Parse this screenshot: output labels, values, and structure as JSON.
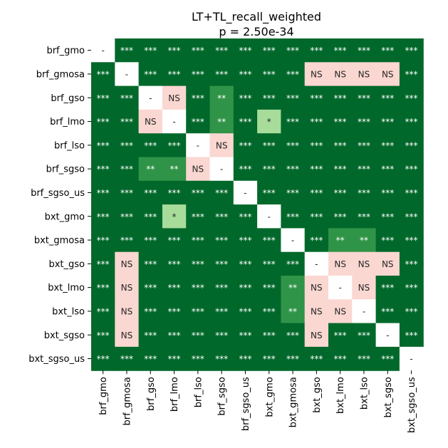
{
  "chart_data": {
    "type": "heatmap",
    "title": "LT+TL_recall_weighted",
    "subtitle": "p = 2.50e-34",
    "xlabel": "",
    "ylabel": "",
    "grid": false,
    "legend": "none",
    "categories": [
      "brf_gmo",
      "brf_gmosa",
      "brf_gso",
      "brf_lmo",
      "brf_lso",
      "brf_sgso",
      "brf_sgso_us",
      "bxt_gmo",
      "bxt_gmosa",
      "bxt_gso",
      "bxt_lmo",
      "bxt_lso",
      "bxt_sgso",
      "bxt_sgso_us"
    ],
    "matrix": [
      [
        "-",
        "***",
        "***",
        "***",
        "***",
        "***",
        "***",
        "***",
        "***",
        "***",
        "***",
        "***",
        "***",
        "***"
      ],
      [
        "***",
        "-",
        "***",
        "***",
        "***",
        "***",
        "***",
        "***",
        "***",
        "NS",
        "NS",
        "NS",
        "NS",
        "***"
      ],
      [
        "***",
        "***",
        "-",
        "NS",
        "***",
        "**",
        "***",
        "***",
        "***",
        "***",
        "***",
        "***",
        "***",
        "***"
      ],
      [
        "***",
        "***",
        "NS",
        "-",
        "***",
        "**",
        "***",
        "*",
        "***",
        "***",
        "***",
        "***",
        "***",
        "***"
      ],
      [
        "***",
        "***",
        "***",
        "***",
        "-",
        "NS",
        "***",
        "***",
        "***",
        "***",
        "***",
        "***",
        "***",
        "***"
      ],
      [
        "***",
        "***",
        "**",
        "**",
        "NS",
        "-",
        "***",
        "***",
        "***",
        "***",
        "***",
        "***",
        "***",
        "***"
      ],
      [
        "***",
        "***",
        "***",
        "***",
        "***",
        "***",
        "-",
        "***",
        "***",
        "***",
        "***",
        "***",
        "***",
        "***"
      ],
      [
        "***",
        "***",
        "***",
        "*",
        "***",
        "***",
        "***",
        "-",
        "***",
        "***",
        "***",
        "***",
        "***",
        "***"
      ],
      [
        "***",
        "***",
        "***",
        "***",
        "***",
        "***",
        "***",
        "***",
        "-",
        "***",
        "**",
        "**",
        "***",
        "***"
      ],
      [
        "***",
        "NS",
        "***",
        "***",
        "***",
        "***",
        "***",
        "***",
        "***",
        "-",
        "NS",
        "NS",
        "NS",
        "***"
      ],
      [
        "***",
        "NS",
        "***",
        "***",
        "***",
        "***",
        "***",
        "***",
        "**",
        "NS",
        "-",
        "NS",
        "***",
        "***"
      ],
      [
        "***",
        "NS",
        "***",
        "***",
        "***",
        "***",
        "***",
        "***",
        "**",
        "NS",
        "NS",
        "-",
        "***",
        "***"
      ],
      [
        "***",
        "NS",
        "***",
        "***",
        "***",
        "***",
        "***",
        "***",
        "***",
        "NS",
        "***",
        "***",
        "-",
        "***"
      ],
      [
        "***",
        "***",
        "***",
        "***",
        "***",
        "***",
        "***",
        "***",
        "***",
        "***",
        "***",
        "***",
        "***",
        "-"
      ]
    ],
    "colors": {
      "***": "#00682a",
      "**": "#2f9447",
      "*": "#a7dc9b",
      "NS": "#fad7d1",
      "-": "#ffffff"
    },
    "text_colors": {
      "***": "#ffffff",
      "**": "#ffffff",
      "*": "#262626",
      "NS": "#262626",
      "-": "#262626"
    }
  }
}
